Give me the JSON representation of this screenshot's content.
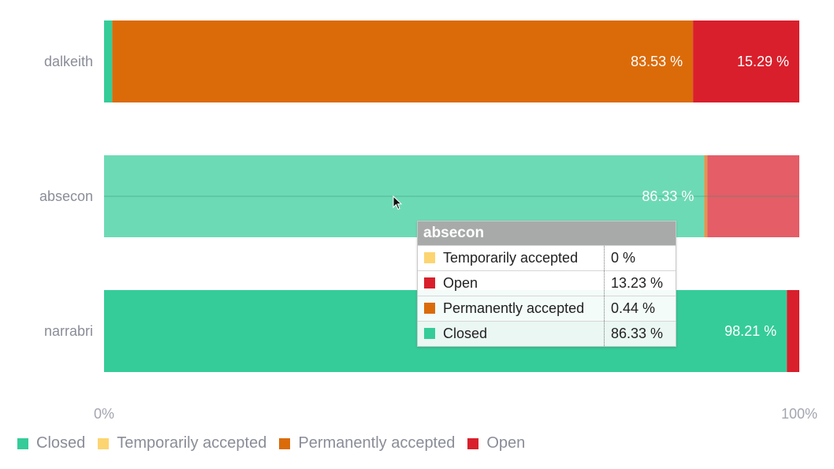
{
  "chart_data": {
    "type": "bar",
    "orientation": "horizontal",
    "stacked": "percent",
    "categories": [
      "dalkeith",
      "absecon",
      "narrabri"
    ],
    "series": [
      {
        "name": "Closed",
        "color": "#35cc9a",
        "values": [
          1.18,
          86.33,
          98.21
        ]
      },
      {
        "name": "Temporarily accepted",
        "color": "#fcd571",
        "values": [
          0,
          0,
          0
        ]
      },
      {
        "name": "Permanently accepted",
        "color": "#db6b09",
        "values": [
          83.53,
          0.44,
          0
        ]
      },
      {
        "name": "Open",
        "color": "#d91f2c",
        "values": [
          15.29,
          13.23,
          1.79
        ]
      }
    ],
    "data_labels": [
      {
        "category": "dalkeith",
        "series": "Permanently accepted",
        "text": "83.53 %"
      },
      {
        "category": "dalkeith",
        "series": "Open",
        "text": "15.29 %"
      },
      {
        "category": "absecon",
        "series": "Closed",
        "text": "86.33 %"
      },
      {
        "category": "narrabri",
        "series": "Closed",
        "text": "98.21 %"
      }
    ],
    "x_ticks": [
      "0%",
      "100%"
    ],
    "xlim": [
      0,
      100
    ],
    "legend_position": "bottom-left",
    "hovered_category": "absecon"
  },
  "legend": {
    "items": [
      {
        "name": "Closed",
        "color": "#35cc9a"
      },
      {
        "name": "Temporarily accepted",
        "color": "#fcd571"
      },
      {
        "name": "Permanently accepted",
        "color": "#db6b09"
      },
      {
        "name": "Open",
        "color": "#d91f2c"
      }
    ]
  },
  "tooltip": {
    "title": "absecon",
    "rows": [
      {
        "label": "Temporarily accepted",
        "value": "0 %",
        "color": "#fcd571"
      },
      {
        "label": "Open",
        "value": "13.23 %",
        "color": "#d91f2c"
      },
      {
        "label": "Permanently accepted",
        "value": "0.44 %",
        "color": "#db6b09"
      },
      {
        "label": "Closed",
        "value": "86.33 %",
        "color": "#35cc9a"
      }
    ]
  }
}
